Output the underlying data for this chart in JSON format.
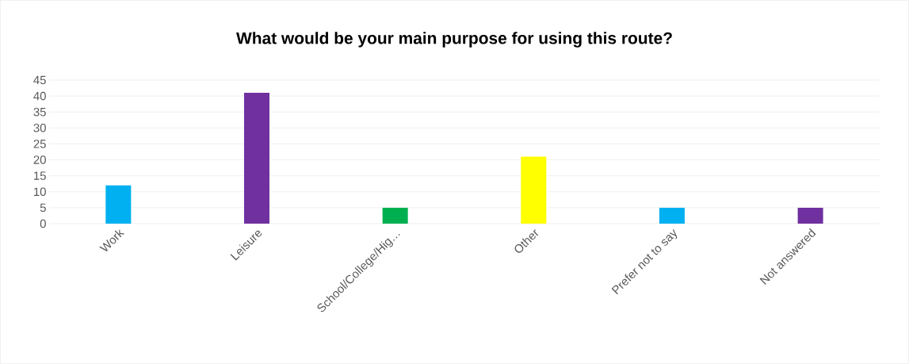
{
  "chart_data": {
    "type": "bar",
    "title": "What would be your main purpose for using this route?",
    "categories": [
      "Work",
      "Leisure",
      "School/College/Hig…",
      "Other",
      "Prefer not to say",
      "Not answered"
    ],
    "values": [
      12,
      41,
      5,
      21,
      5,
      5
    ],
    "colors": [
      "#00b0f0",
      "#7030a0",
      "#00b050",
      "#ffff00",
      "#00b0f0",
      "#7030a0"
    ],
    "ylim": [
      0,
      45
    ],
    "yticks": [
      0,
      5,
      10,
      15,
      20,
      25,
      30,
      35,
      40,
      45
    ],
    "grid": "y"
  }
}
